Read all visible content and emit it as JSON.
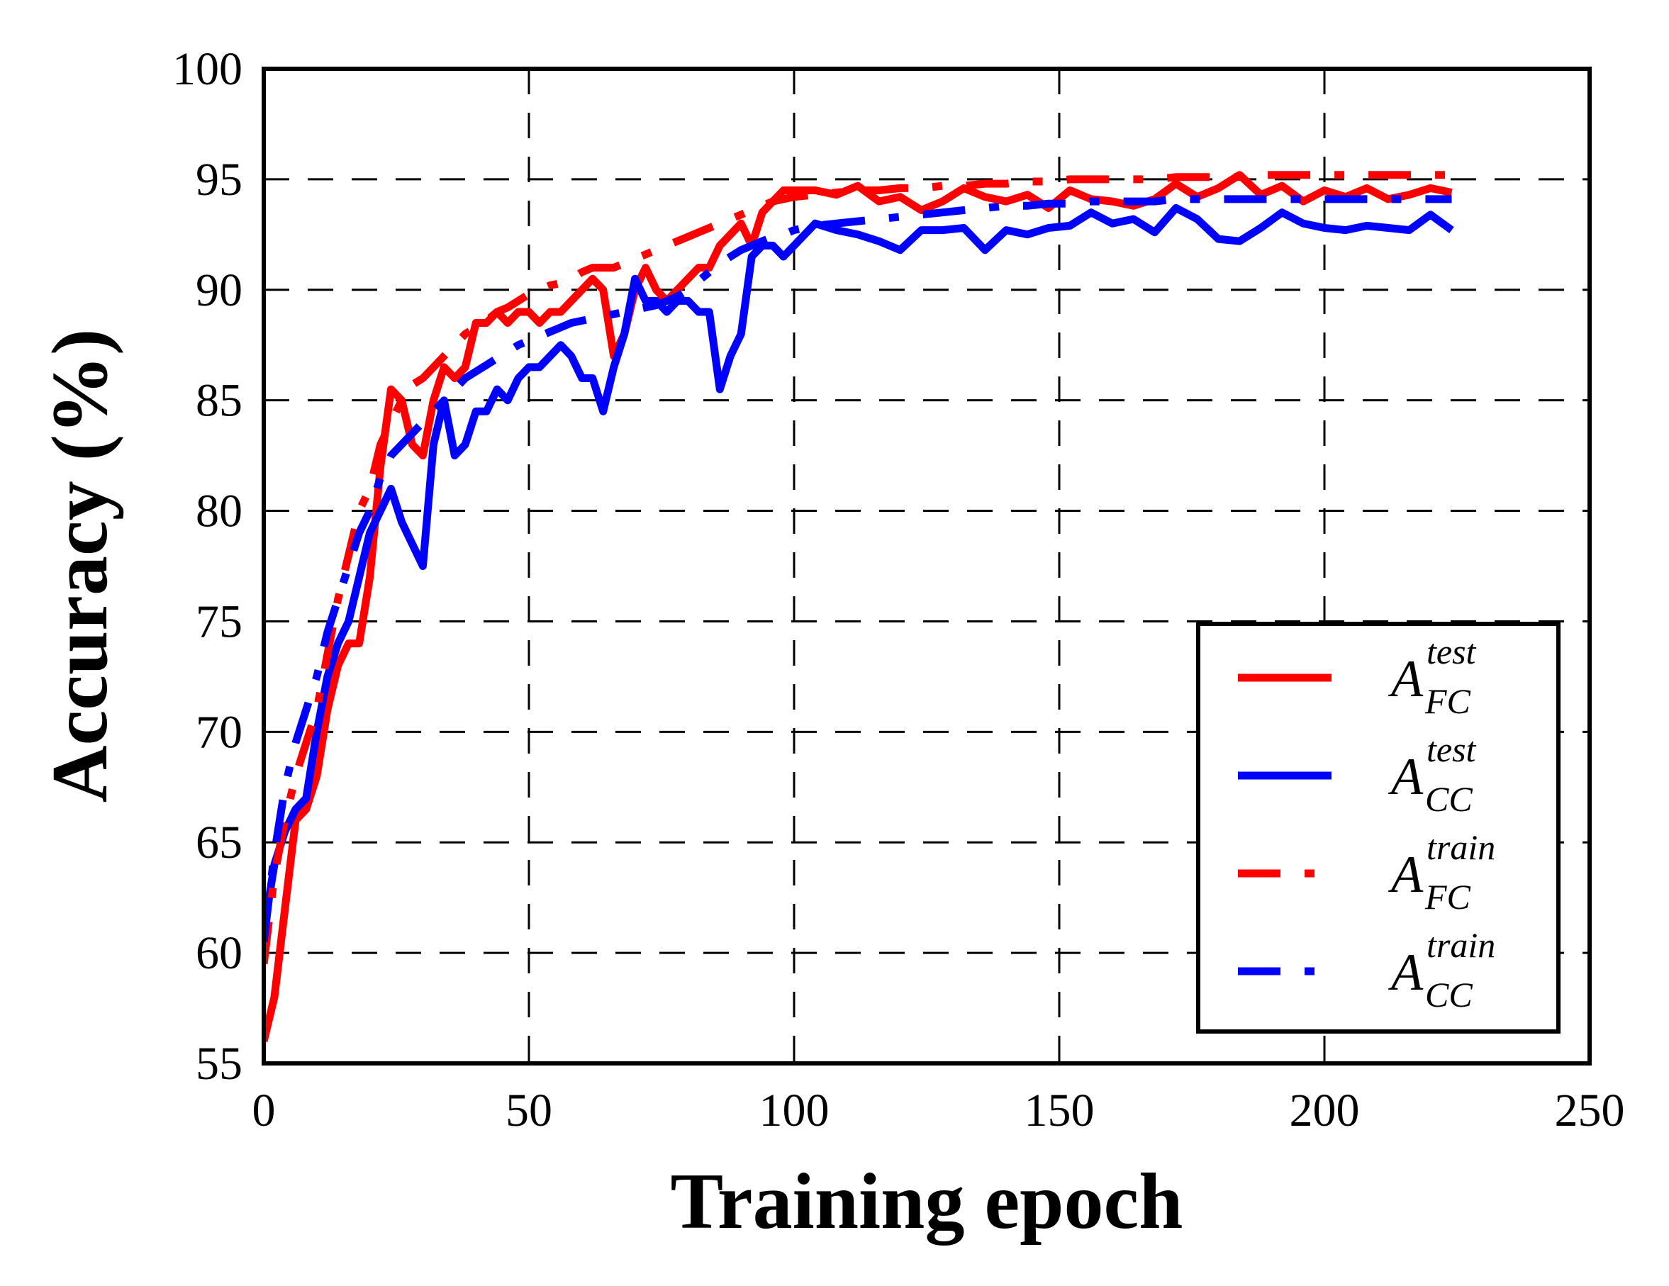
{
  "chart_data": {
    "type": "line",
    "xlabel": "Training epoch",
    "ylabel": "Accuracy (%)",
    "xlim": [
      0,
      250
    ],
    "ylim": [
      55,
      100
    ],
    "xticks": [
      0,
      50,
      100,
      150,
      200,
      250
    ],
    "yticks": [
      55,
      60,
      65,
      70,
      75,
      80,
      85,
      90,
      95,
      100
    ],
    "grid": true,
    "grid_style": "dashed",
    "legend_position": "lower-right",
    "series": [
      {
        "name": "A_FC^test",
        "label_main": "A",
        "label_sub": "FC",
        "label_sup": "test",
        "color": "#ff0000",
        "style": "solid",
        "x": [
          0,
          2,
          4,
          6,
          8,
          10,
          12,
          14,
          16,
          18,
          20,
          22,
          24,
          26,
          28,
          30,
          32,
          34,
          36,
          38,
          40,
          42,
          44,
          46,
          48,
          50,
          52,
          54,
          56,
          58,
          60,
          62,
          64,
          66,
          68,
          70,
          72,
          74,
          76,
          78,
          80,
          82,
          84,
          86,
          88,
          90,
          92,
          94,
          96,
          98,
          100,
          104,
          108,
          112,
          116,
          120,
          124,
          128,
          132,
          136,
          140,
          144,
          148,
          152,
          156,
          160,
          164,
          168,
          172,
          176,
          180,
          184,
          188,
          192,
          196,
          200,
          204,
          208,
          212,
          216,
          220,
          224
        ],
        "y": [
          56,
          58,
          62,
          66,
          66.5,
          68,
          71,
          73,
          74,
          74,
          77,
          82,
          85.5,
          85,
          83,
          82.5,
          85,
          86.5,
          86,
          86.5,
          88.5,
          88.5,
          89,
          88.5,
          89,
          89,
          88.5,
          89,
          89,
          89.5,
          90,
          90.5,
          90,
          87,
          88,
          90,
          91,
          90,
          89.5,
          90,
          90.5,
          91,
          91,
          92,
          92.5,
          93,
          92,
          93.5,
          94,
          94.5,
          94.5,
          94.5,
          94.3,
          94.7,
          94,
          94.2,
          93.6,
          94,
          94.6,
          94.2,
          94,
          94.3,
          93.7,
          94.5,
          94.1,
          94,
          93.8,
          94.1,
          94.8,
          94.2,
          94.6,
          95.2,
          94.3,
          94.7,
          94,
          94.5,
          94.2,
          94.6,
          94.1,
          94.3,
          94.6,
          94.4
        ]
      },
      {
        "name": "A_CC^test",
        "label_main": "A",
        "label_sub": "CC",
        "label_sup": "test",
        "color": "#0000ff",
        "style": "solid",
        "x": [
          0,
          2,
          4,
          6,
          8,
          10,
          12,
          14,
          16,
          18,
          20,
          22,
          24,
          26,
          28,
          30,
          32,
          34,
          36,
          38,
          40,
          42,
          44,
          46,
          48,
          50,
          52,
          54,
          56,
          58,
          60,
          62,
          64,
          66,
          68,
          70,
          72,
          74,
          76,
          78,
          80,
          82,
          84,
          86,
          88,
          90,
          92,
          94,
          96,
          98,
          100,
          104,
          108,
          112,
          116,
          120,
          124,
          128,
          132,
          136,
          140,
          144,
          148,
          152,
          156,
          160,
          164,
          168,
          172,
          176,
          180,
          184,
          188,
          192,
          196,
          200,
          204,
          208,
          212,
          216,
          220,
          224
        ],
        "y": [
          61,
          64,
          65.5,
          66.5,
          67,
          70,
          72.5,
          74,
          75,
          77,
          79,
          80,
          81,
          79.5,
          78.5,
          77.5,
          83,
          85,
          82.5,
          83,
          84.5,
          84.5,
          85.5,
          85,
          86,
          86.5,
          86.5,
          87,
          87.5,
          87,
          86,
          86,
          84.5,
          86.5,
          88,
          90.5,
          89.5,
          89.5,
          89,
          89.5,
          89.5,
          89,
          89,
          85.5,
          87,
          88,
          91.5,
          92,
          92,
          91.5,
          92,
          93,
          92.7,
          92.5,
          92.2,
          91.8,
          92.7,
          92.7,
          92.8,
          91.8,
          92.7,
          92.5,
          92.8,
          92.9,
          93.5,
          93,
          93.2,
          92.6,
          93.7,
          93.2,
          92.3,
          92.2,
          92.8,
          93.5,
          93,
          92.8,
          92.7,
          92.9,
          92.8,
          92.7,
          93.4,
          92.7
        ]
      },
      {
        "name": "A_FC^train",
        "label_main": "A",
        "label_sub": "FC",
        "label_sup": "train",
        "color": "#ff0000",
        "style": "dashdot",
        "x": [
          0,
          2,
          4,
          6,
          8,
          10,
          12,
          14,
          16,
          18,
          20,
          22,
          24,
          26,
          28,
          30,
          32,
          34,
          36,
          38,
          40,
          42,
          44,
          46,
          48,
          50,
          52,
          54,
          56,
          58,
          60,
          62,
          64,
          66,
          68,
          70,
          72,
          74,
          76,
          78,
          80,
          82,
          84,
          86,
          88,
          90,
          92,
          94,
          96,
          98,
          100,
          104,
          108,
          112,
          116,
          120,
          124,
          128,
          132,
          136,
          140,
          144,
          148,
          152,
          156,
          160,
          164,
          168,
          172,
          176,
          180,
          184,
          188,
          192,
          196,
          200,
          204,
          208,
          212,
          216,
          220,
          224
        ],
        "y": [
          59.5,
          63.5,
          66,
          68,
          69.5,
          71,
          73.5,
          76,
          78,
          80,
          81,
          83,
          84,
          85,
          85.7,
          86,
          86.5,
          87,
          87.5,
          88,
          88.3,
          88.6,
          89,
          89.2,
          89.5,
          89.8,
          90,
          90.2,
          90.3,
          90.5,
          90.8,
          91,
          91,
          91,
          91.2,
          91.4,
          91.6,
          91.8,
          92,
          92.2,
          92.4,
          92.6,
          92.8,
          93,
          93.2,
          93.4,
          93.6,
          93.8,
          94,
          94.1,
          94.2,
          94.3,
          94.4,
          94.5,
          94.5,
          94.6,
          94.6,
          94.7,
          94.7,
          94.8,
          94.8,
          94.9,
          94.9,
          95,
          95,
          95,
          95,
          95,
          95.1,
          95.1,
          95.1,
          95.1,
          95.2,
          95.2,
          95.2,
          95.2,
          95.2,
          95.2,
          95.2,
          95.2,
          95.2,
          95.2
        ]
      },
      {
        "name": "A_CC^train",
        "label_main": "A",
        "label_sub": "CC",
        "label_sup": "train",
        "color": "#0000ff",
        "style": "dashdot",
        "x": [
          0,
          2,
          4,
          6,
          8,
          10,
          12,
          14,
          16,
          18,
          20,
          22,
          24,
          26,
          28,
          30,
          32,
          34,
          36,
          38,
          40,
          42,
          44,
          46,
          48,
          50,
          52,
          54,
          56,
          58,
          60,
          62,
          64,
          66,
          68,
          70,
          72,
          74,
          76,
          78,
          80,
          82,
          84,
          86,
          88,
          90,
          92,
          94,
          96,
          98,
          100,
          104,
          108,
          112,
          116,
          120,
          124,
          128,
          132,
          136,
          140,
          144,
          148,
          152,
          156,
          160,
          164,
          168,
          172,
          176,
          180,
          184,
          188,
          192,
          196,
          200,
          204,
          208,
          212,
          216,
          220,
          224
        ],
        "y": [
          60.5,
          64.5,
          67.5,
          69.5,
          71,
          72.5,
          74.5,
          76,
          77.5,
          79,
          80,
          81.5,
          82.5,
          83,
          83.5,
          84,
          84.5,
          85,
          85.5,
          86,
          86.3,
          86.6,
          86.9,
          87.2,
          87.5,
          87.7,
          87.9,
          88.1,
          88.3,
          88.5,
          88.6,
          88.7,
          88.8,
          88.9,
          89,
          89.1,
          89.2,
          89.3,
          89.5,
          89.7,
          90,
          90.4,
          90.8,
          91.2,
          91.5,
          91.8,
          92,
          92.2,
          92.4,
          92.5,
          92.7,
          92.9,
          93,
          93.1,
          93.2,
          93.3,
          93.4,
          93.5,
          93.6,
          93.7,
          93.8,
          93.8,
          93.9,
          93.9,
          94,
          94,
          94,
          94,
          94.1,
          94.1,
          94.1,
          94.1,
          94.1,
          94.1,
          94.1,
          94.1,
          94.1,
          94.1,
          94.1,
          94.1,
          94.1,
          94.1
        ]
      }
    ]
  }
}
